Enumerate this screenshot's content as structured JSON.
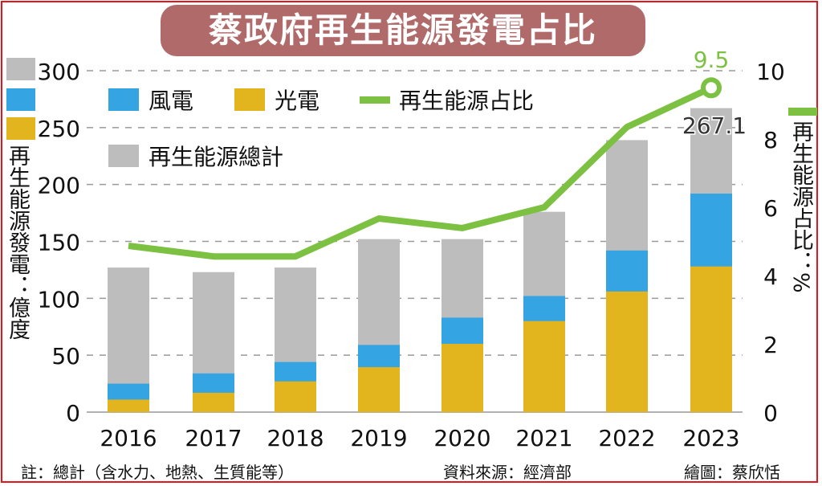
{
  "title": "蔡政府再生能源發電占比",
  "chart_data": {
    "type": "bar+line",
    "categories": [
      "2016",
      "2017",
      "2018",
      "2019",
      "2020",
      "2021",
      "2022",
      "2023"
    ],
    "series": [
      {
        "name": "再生能源總計",
        "type": "bar",
        "axis": "left",
        "color": "#bdbdbd",
        "values": [
          127,
          123,
          127,
          152,
          152,
          176,
          239,
          267.1
        ]
      },
      {
        "name": "風電",
        "type": "bar",
        "axis": "left",
        "color": "#35a4e2",
        "values": [
          25,
          34,
          44,
          59,
          83,
          102,
          142,
          192
        ]
      },
      {
        "name": "光電",
        "type": "bar",
        "axis": "left",
        "color": "#e2b41e",
        "values": [
          11,
          17,
          27,
          39.5,
          60,
          80,
          106,
          128
        ]
      },
      {
        "name": "再生能源占比",
        "type": "line",
        "axis": "right",
        "color": "#7cc142",
        "values": [
          4.87,
          4.56,
          4.56,
          5.67,
          5.39,
          6.0,
          8.35,
          9.5
        ]
      }
    ],
    "annotations": {
      "total_2023": "267.1",
      "share_2023": "9.5"
    },
    "left_axis": {
      "label": "再生能源發電：億度",
      "ylim": [
        0,
        300
      ],
      "ticks": [
        "0",
        "50",
        "100",
        "150",
        "200",
        "250",
        "300"
      ]
    },
    "right_axis": {
      "label": "再生能源占比：%",
      "ylim": [
        0,
        10
      ],
      "ticks": [
        "0",
        "2",
        "4",
        "6",
        "8",
        "10"
      ]
    },
    "grid": "dashed horizontal",
    "legend": "top-left"
  },
  "footer": {
    "note": "註：總計（含水力、地熱、生質能等）",
    "source": "資料來源：經濟部",
    "credit": "繪圖：蔡欣恬"
  }
}
